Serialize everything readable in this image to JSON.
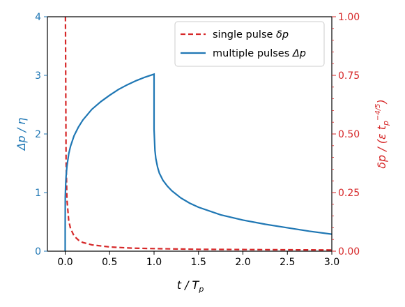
{
  "chart_data": {
    "type": "line",
    "xlabel": "t / T",
    "xlabel_sub": "p",
    "ylabel_left": "Δp / η",
    "ylabel_right": "δp / (ε t",
    "ylabel_right_sub": "p",
    "ylabel_right_sup": "−4/5",
    "ylabel_right_end": ")",
    "xlim": [
      -0.2,
      3.0
    ],
    "ylim_left": [
      0,
      4
    ],
    "ylim_right": [
      0,
      1.0
    ],
    "x_ticks": [
      {
        "value": 0.0,
        "label": "0.0"
      },
      {
        "value": 0.5,
        "label": "0.5"
      },
      {
        "value": 1.0,
        "label": "1.0"
      },
      {
        "value": 1.5,
        "label": "1.5"
      },
      {
        "value": 2.0,
        "label": "2.0"
      },
      {
        "value": 2.5,
        "label": "2.5"
      },
      {
        "value": 3.0,
        "label": "3.0"
      }
    ],
    "y_left_ticks": [
      {
        "value": 0,
        "label": "0"
      },
      {
        "value": 1,
        "label": "1"
      },
      {
        "value": 2,
        "label": "2"
      },
      {
        "value": 3,
        "label": "3"
      },
      {
        "value": 4,
        "label": "4"
      }
    ],
    "y_right_ticks": [
      {
        "value": 0.0,
        "label": "0.00"
      },
      {
        "value": 0.25,
        "label": "0.25"
      },
      {
        "value": 0.5,
        "label": "0.50"
      },
      {
        "value": 0.75,
        "label": "0.75"
      },
      {
        "value": 1.0,
        "label": "1.00"
      }
    ],
    "series": [
      {
        "name": "single pulse δp",
        "axis": "right",
        "color": "#d62728",
        "dash": true,
        "points": [
          [
            0.0,
            1.0
          ],
          [
            0.003,
            1.0
          ],
          [
            0.01,
            0.39
          ],
          [
            0.02,
            0.22
          ],
          [
            0.04,
            0.13
          ],
          [
            0.06,
            0.097
          ],
          [
            0.1,
            0.065
          ],
          [
            0.15,
            0.047
          ],
          [
            0.2,
            0.037
          ],
          [
            0.3,
            0.027
          ],
          [
            0.5,
            0.018
          ],
          [
            0.75,
            0.013
          ],
          [
            1.0,
            0.011
          ],
          [
            1.5,
            0.008
          ],
          [
            2.0,
            0.007
          ],
          [
            2.5,
            0.006
          ],
          [
            3.0,
            0.005
          ]
        ]
      },
      {
        "name": "multiple pulses Δp",
        "axis": "left",
        "color": "#1f77b4",
        "dash": false,
        "points": [
          [
            0.0,
            0.0
          ],
          [
            0.0,
            0.35
          ],
          [
            0.001,
            0.92
          ],
          [
            0.005,
            1.12
          ],
          [
            0.01,
            1.27
          ],
          [
            0.02,
            1.45
          ],
          [
            0.04,
            1.66
          ],
          [
            0.06,
            1.79
          ],
          [
            0.1,
            1.97
          ],
          [
            0.15,
            2.12
          ],
          [
            0.2,
            2.24
          ],
          [
            0.3,
            2.42
          ],
          [
            0.4,
            2.55
          ],
          [
            0.5,
            2.66
          ],
          [
            0.6,
            2.76
          ],
          [
            0.7,
            2.84
          ],
          [
            0.8,
            2.91
          ],
          [
            0.9,
            2.97
          ],
          [
            1.0,
            3.02
          ],
          [
            1.0,
            2.08
          ],
          [
            1.01,
            1.72
          ],
          [
            1.02,
            1.58
          ],
          [
            1.04,
            1.43
          ],
          [
            1.06,
            1.33
          ],
          [
            1.1,
            1.21
          ],
          [
            1.15,
            1.11
          ],
          [
            1.2,
            1.03
          ],
          [
            1.3,
            0.91
          ],
          [
            1.4,
            0.82
          ],
          [
            1.5,
            0.75
          ],
          [
            1.75,
            0.62
          ],
          [
            2.0,
            0.53
          ],
          [
            2.25,
            0.46
          ],
          [
            2.5,
            0.4
          ],
          [
            2.75,
            0.34
          ],
          [
            3.0,
            0.29
          ]
        ]
      }
    ],
    "legend": {
      "position": "top-right",
      "entries": [
        {
          "label": "single pulse ",
          "symbol": "δp",
          "color": "#d62728",
          "dash": true
        },
        {
          "label": "multiple pulses ",
          "symbol": "Δp",
          "color": "#1f77b4",
          "dash": false
        }
      ]
    },
    "grid": false,
    "colors": {
      "left_axis": "#1f77b4",
      "right_axis": "#d62728"
    }
  }
}
